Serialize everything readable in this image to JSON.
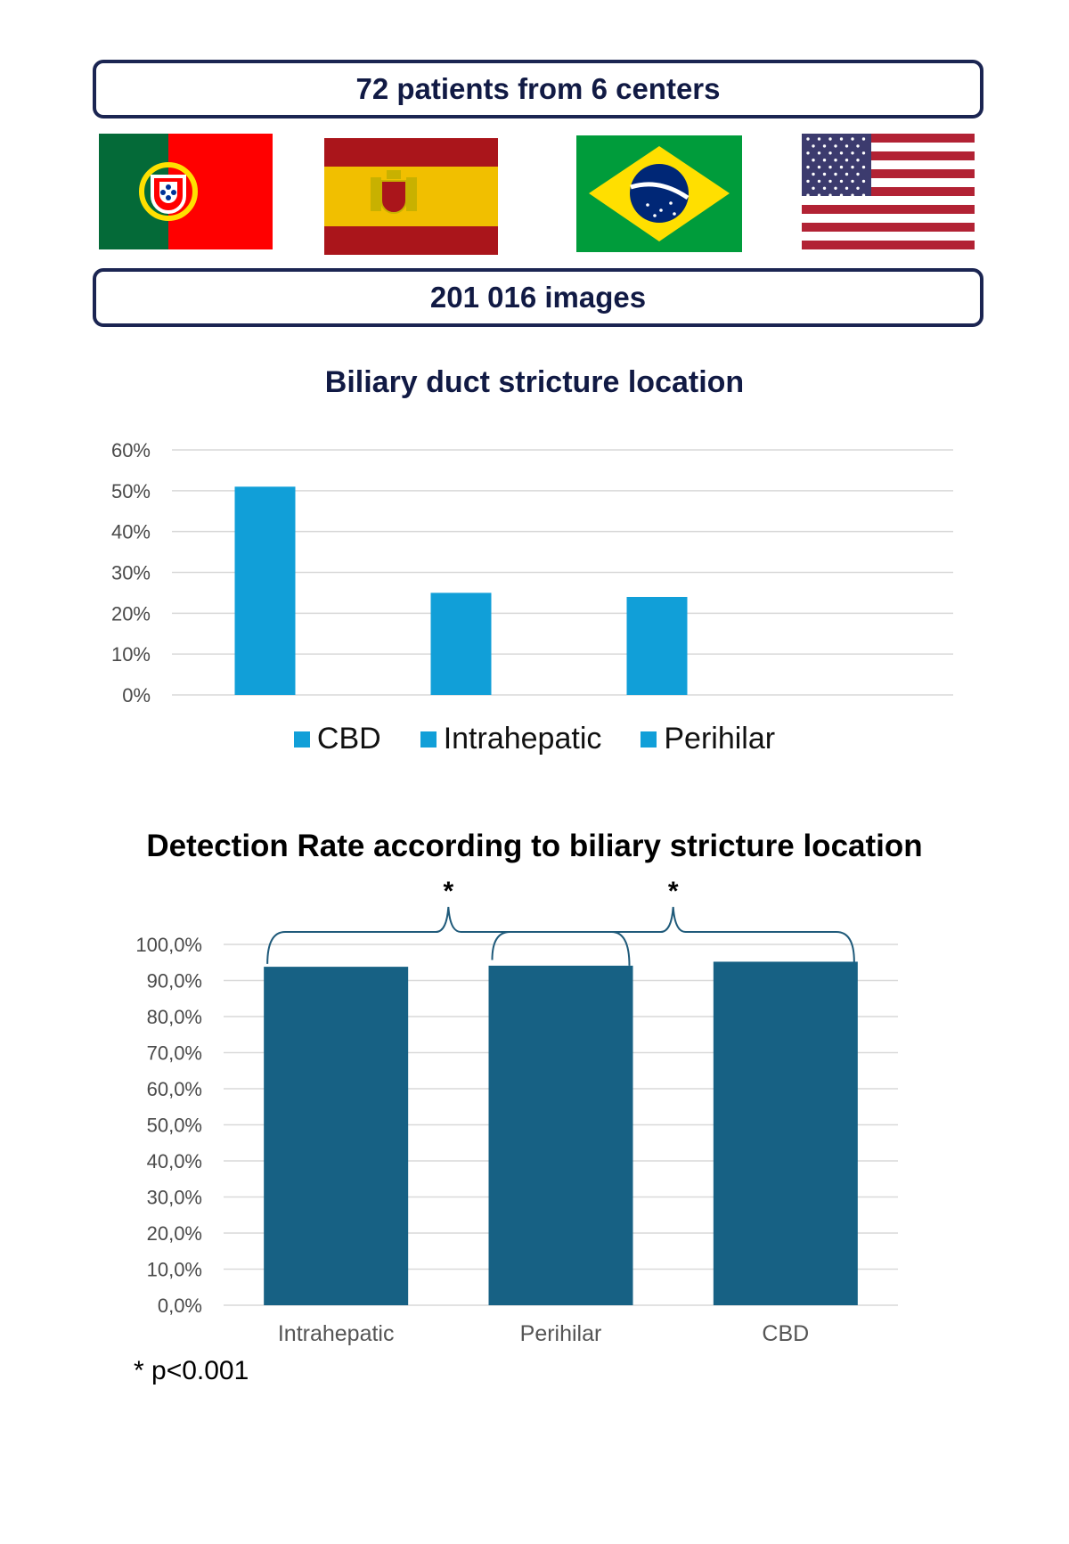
{
  "header": {
    "patients_text": "72 patients  from 6 centers",
    "images_text": "201 016 images"
  },
  "flags": [
    {
      "country": "Portugal",
      "icon": "portugal-flag-icon"
    },
    {
      "country": "Spain",
      "icon": "spain-flag-icon"
    },
    {
      "country": "Brazil",
      "icon": "brazil-flag-icon"
    },
    {
      "country": "United States",
      "icon": "usa-flag-icon"
    }
  ],
  "colors": {
    "bar_light": "#119fd8",
    "bar_dark": "#176184",
    "box_border": "#1b2552",
    "grid": "#d9d9d9"
  },
  "chart_data": [
    {
      "type": "bar",
      "title": "Biliary duct stricture location",
      "categories": [
        "CBD",
        "Intrahepatic",
        "Perihilar"
      ],
      "series": [
        {
          "name": "CBD",
          "values": [
            51,
            null,
            null
          ]
        },
        {
          "name": "Intrahepatic",
          "values": [
            null,
            25,
            null
          ]
        },
        {
          "name": "Perihilar",
          "values": [
            null,
            null,
            24
          ]
        }
      ],
      "values": [
        51,
        25,
        24
      ],
      "yticks": [
        "60%",
        "50%",
        "40%",
        "30%",
        "20%",
        "10%",
        "0%"
      ],
      "ylim": [
        0,
        60
      ],
      "legend": [
        "CBD",
        "Intrahepatic",
        "Perihilar"
      ],
      "legend_position": "bottom",
      "grid": true
    },
    {
      "type": "bar",
      "title": "Detection Rate according to biliary stricture location",
      "categories": [
        "Intrahepatic",
        "Perihilar",
        "CBD"
      ],
      "values": [
        93.8,
        94.1,
        95.2
      ],
      "yticks": [
        "100,0%",
        "90,0%",
        "80,0%",
        "70,0%",
        "60,0%",
        "50,0%",
        "40,0%",
        "30,0%",
        "20,0%",
        "10,0%",
        "0,0%"
      ],
      "ylim": [
        0,
        100
      ],
      "grid": true,
      "annotations": [
        {
          "text": "*",
          "between": [
            "Intrahepatic",
            "Perihilar"
          ]
        },
        {
          "text": "*",
          "between": [
            "Perihilar",
            "CBD"
          ]
        }
      ],
      "footnote": "* p<0.001"
    }
  ]
}
